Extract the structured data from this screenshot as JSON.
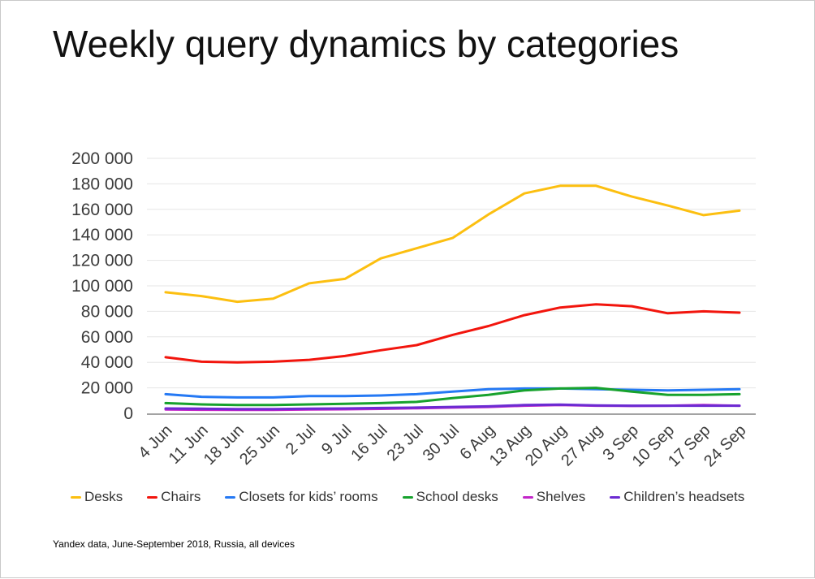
{
  "page": {
    "title": "Weekly query dynamics by categories",
    "footer": "Yandex data, June-September 2018, Russia, all devices"
  },
  "chart_data": {
    "type": "line",
    "title": "Weekly query dynamics by categories",
    "x": [
      "4 Jun",
      "11 Jun",
      "18 Jun",
      "25 Jun",
      "2 Jul",
      "9 Jul",
      "16 Jul",
      "23 Jul",
      "30 Jul",
      "6 Aug",
      "13 Aug",
      "20 Aug",
      "27 Aug",
      "3 Sep",
      "10 Sep",
      "17 Sep",
      "24 Sep"
    ],
    "series": [
      {
        "name": "Desks",
        "color": "#fcbf10",
        "values": [
          95000,
          92000,
          87500,
          90000,
          102000,
          105500,
          121500,
          129500,
          137500,
          156000,
          172500,
          178500,
          178500,
          170000,
          163000,
          155500,
          159000
        ]
      },
      {
        "name": "Chairs",
        "color": "#f2150d",
        "values": [
          44000,
          40500,
          40000,
          40500,
          42000,
          45000,
          49500,
          53500,
          61500,
          68500,
          77000,
          83000,
          85500,
          84000,
          78500,
          80000,
          79000
        ]
      },
      {
        "name": "Closets for kids’ rooms",
        "color": "#2579f4",
        "values": [
          15000,
          13000,
          12500,
          12500,
          13500,
          13500,
          14000,
          15000,
          17000,
          19000,
          19500,
          19500,
          19000,
          18500,
          18000,
          18500,
          19000
        ]
      },
      {
        "name": "School desks",
        "color": "#17a22d",
        "values": [
          8000,
          7000,
          6500,
          6500,
          7000,
          7500,
          8000,
          9000,
          12000,
          14500,
          18000,
          19500,
          20000,
          17000,
          14500,
          14500,
          15000
        ]
      },
      {
        "name": "Shelves",
        "color": "#c326c9",
        "values": [
          3000,
          2800,
          2700,
          2700,
          3000,
          3200,
          3500,
          4000,
          4500,
          5000,
          6000,
          6500,
          6000,
          5800,
          6000,
          6500,
          6000
        ]
      },
      {
        "name": "Children’s headsets",
        "color": "#6c2bd2",
        "values": [
          3800,
          3600,
          3400,
          3400,
          3600,
          3800,
          4200,
          4500,
          5000,
          5500,
          6500,
          6800,
          6200,
          6000,
          6000,
          6000,
          6000
        ]
      }
    ],
    "ylim": [
      0,
      200000
    ],
    "ytick_step": 20000,
    "ytick_labels": [
      "0",
      "20 000",
      "40 000",
      "60 000",
      "80 000",
      "100 000",
      "120 000",
      "140 000",
      "160 000",
      "180 000",
      "200 000"
    ],
    "grid": "horizontal-only",
    "x_label_rotation": -45,
    "legend_position": "bottom"
  }
}
